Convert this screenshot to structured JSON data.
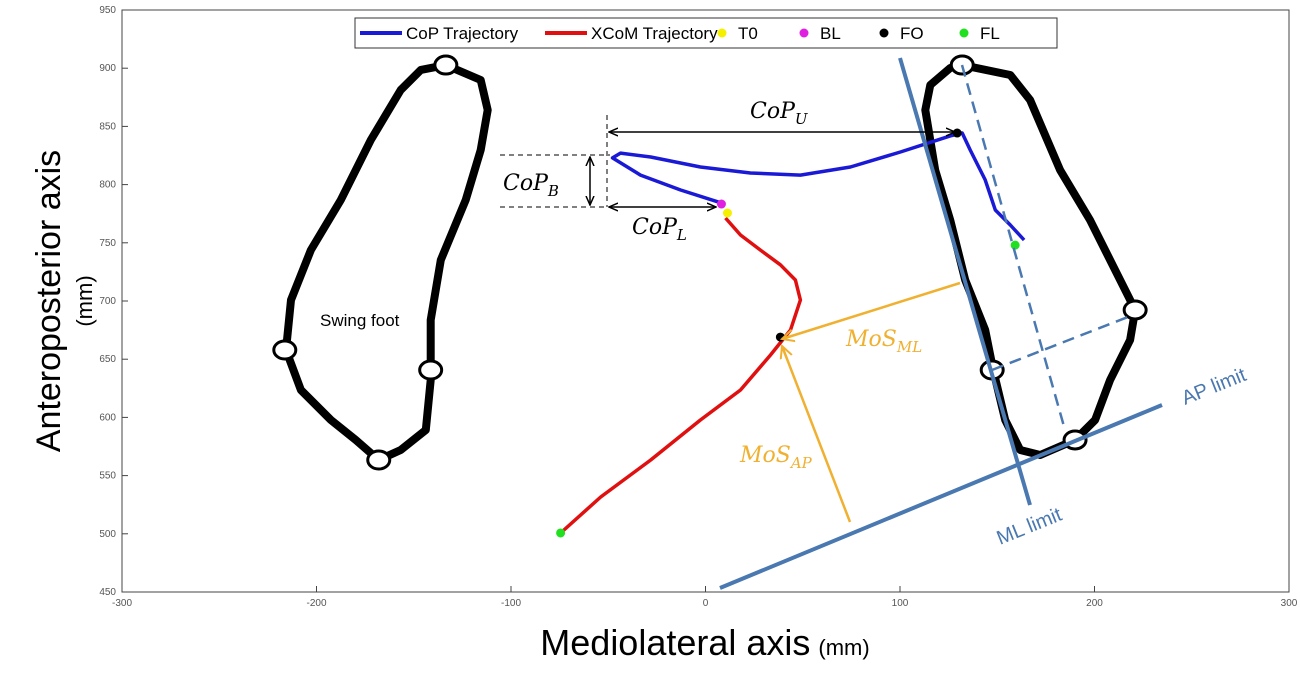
{
  "chart_data": {
    "type": "line",
    "xlabel": "Mediolateral axis",
    "xlabel_unit": "(mm)",
    "ylabel": "Anteroposterior axis",
    "ylabel_unit": "(mm)",
    "xlim": [
      -300,
      300
    ],
    "xticks": [
      -300,
      -200,
      -100,
      0,
      100,
      200,
      300
    ],
    "ylim": [
      450,
      950
    ],
    "yticks": [
      450,
      500,
      550,
      600,
      650,
      700,
      750,
      800,
      850,
      900,
      950
    ],
    "legend": "upper center",
    "series": [
      {
        "name": "CoP Trajectory",
        "color": "#1a1ad6",
        "style": "line",
        "x": [
          6.7,
          -12.8,
          -33.4,
          -47.8,
          -43.7,
          -28.2,
          -2.6,
          23.1,
          48.8,
          74.5,
          100.2,
          125.8,
          132,
          136.1,
          143.8,
          149,
          156.7,
          163.8
        ],
        "y": [
          785,
          795.4,
          808.2,
          822.9,
          827.1,
          823.7,
          815.1,
          810,
          808.2,
          815.1,
          828,
          841.8,
          844.3,
          829.7,
          804,
          778.2,
          765.3,
          752.4
        ]
      },
      {
        "name": "XCoM Trajectory",
        "color": "#e01010",
        "style": "line",
        "x": [
          -74.5,
          -53.9,
          -28.2,
          -2.6,
          18,
          33.4,
          43.7,
          48.8,
          46.2,
          38.5,
          28.2,
          18,
          10.3
        ],
        "y": [
          500.7,
          531.6,
          563.4,
          597.8,
          623.5,
          653.6,
          675.1,
          700.9,
          718,
          731.1,
          743.8,
          756.7,
          771.3
        ]
      },
      {
        "name": "T0",
        "color": "#f5f000",
        "style": "point",
        "x": [
          11.3
        ],
        "y": [
          775.6
        ]
      },
      {
        "name": "BL",
        "color": "#e020e0",
        "style": "point",
        "x": [
          8.2
        ],
        "y": [
          783.3
        ]
      },
      {
        "name": "FO",
        "color": "#000000",
        "style": "point",
        "x": [
          129.4,
          38.5
        ],
        "y": [
          844.3,
          669
        ]
      },
      {
        "name": "FL",
        "color": "#20e020",
        "style": "point",
        "x": [
          159.2,
          -74.5
        ],
        "y": [
          748,
          500.7
        ]
      }
    ],
    "outlines": [
      {
        "x": [
          -133.5,
          -115.6,
          -112,
          -115.6,
          -123.3,
          -136.1,
          -141.3,
          -141.3,
          -143.8,
          -156.7,
          -168,
          -179.8,
          -192.6,
          -208,
          -215.7,
          -213.1,
          -202.9,
          -187.5,
          -172.1,
          -156.7,
          -146.4
        ],
        "y": [
          902.7,
          889.9,
          864.1,
          829.7,
          786.8,
          735.2,
          683.7,
          632.1,
          589.2,
          572,
          563.4,
          580.6,
          597.8,
          623.5,
          657.9,
          700.9,
          743.8,
          786.8,
          838.3,
          881.3,
          898.5
        ]
      },
      {
        "x": [
          132,
          156.7,
          166.9,
          182.3,
          197.7,
          210.6,
          220.9,
          218.3,
          208,
          200.3,
          190,
          172.1,
          161.8,
          154.1,
          147.9,
          143.8,
          133.5,
          125.8,
          118.1,
          113,
          115.6,
          125.8
        ],
        "y": [
          902.7,
          894.2,
          872.7,
          812.5,
          769.6,
          726.6,
          692.3,
          666.5,
          632.1,
          597.8,
          580.6,
          567.7,
          572,
          597.8,
          640.7,
          675.1,
          718,
          769.6,
          812.5,
          864.1,
          885.6,
          900.2
        ]
      }
    ],
    "landmarks": {
      "x": [
        -133.5,
        -216.3,
        -141.3,
        -168,
        132,
        220.9,
        147.4,
        190
      ],
      "y": [
        902.7,
        657.9,
        640.7,
        563.4,
        902.7,
        692.3,
        640.7,
        580.6
      ]
    },
    "annotations": [
      {
        "text": "CoP",
        "sub": "U"
      },
      {
        "text": "CoP",
        "sub": "B"
      },
      {
        "text": "CoP",
        "sub": "L"
      },
      {
        "text": "MoS",
        "sub": "ML"
      },
      {
        "text": "MoS",
        "sub": "AP"
      },
      {
        "text": "Swing foot"
      },
      {
        "text": "AP limit"
      },
      {
        "text": "ML limit"
      }
    ]
  }
}
